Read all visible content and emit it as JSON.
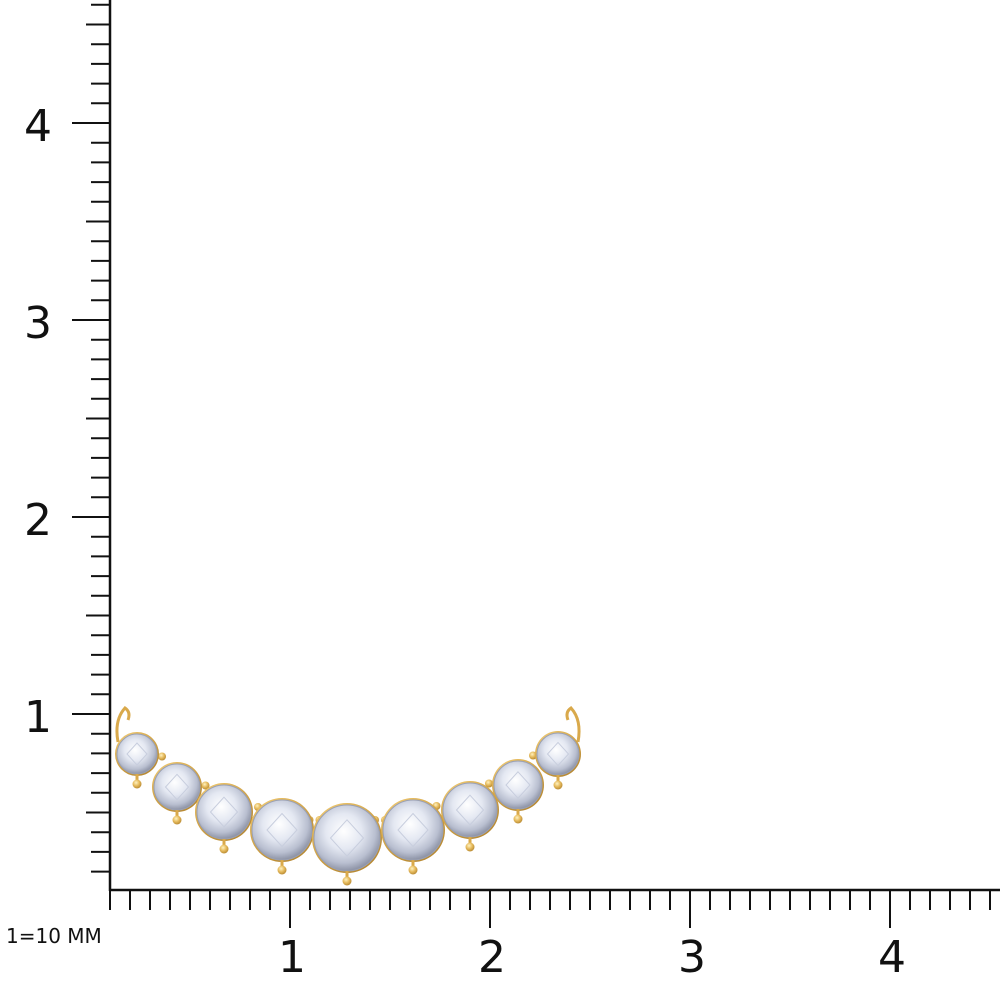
{
  "ruler": {
    "scale_label": "1=10 MM",
    "x_labels": [
      "1",
      "2",
      "3",
      "4"
    ],
    "y_labels": [
      "1",
      "2",
      "3",
      "4"
    ]
  }
}
